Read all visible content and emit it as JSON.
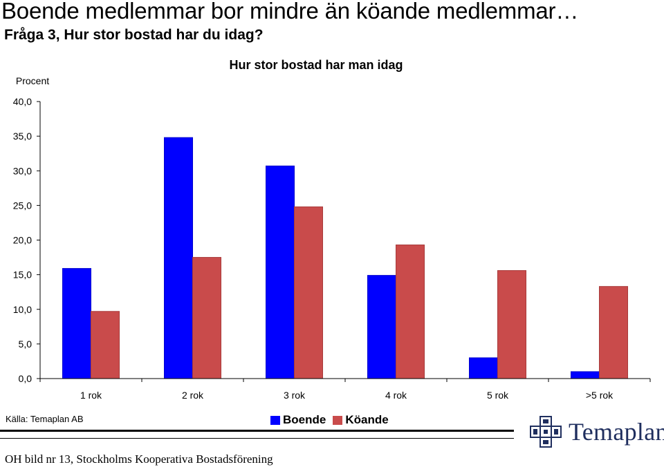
{
  "header": {
    "title": "Boende medlemmar bor mindre än köande medlemmar…",
    "subtitle": "Fråga 3, Hur stor bostad har du idag?"
  },
  "chart_data": {
    "type": "bar",
    "title": "Hur stor bostad har man idag",
    "ylabel": "Procent",
    "xlabel": "",
    "ylim": [
      0,
      40
    ],
    "yticks": [
      "0,0",
      "5,0",
      "10,0",
      "15,0",
      "20,0",
      "25,0",
      "30,0",
      "35,0",
      "40,0"
    ],
    "categories": [
      "1 rok",
      "2 rok",
      "3 rok",
      "4 rok",
      "5 rok",
      ">5 rok"
    ],
    "series": [
      {
        "name": "Boende",
        "color": "#0000ff",
        "values": [
          15.9,
          34.8,
          30.7,
          14.9,
          3.0,
          1.0
        ]
      },
      {
        "name": "Köande",
        "color": "#c94b4b",
        "values": [
          9.7,
          17.5,
          24.8,
          19.3,
          15.6,
          13.3
        ]
      }
    ],
    "grid": false,
    "legend": "bottom"
  },
  "source": "Källa: Temaplan AB",
  "footer": "OH bild nr 13, Stockholms Kooperativa Bostadsförening",
  "logo": {
    "text": "Temaplan",
    "icon": "temaplan-cross-logo-icon",
    "color": "#1f2e5e"
  }
}
